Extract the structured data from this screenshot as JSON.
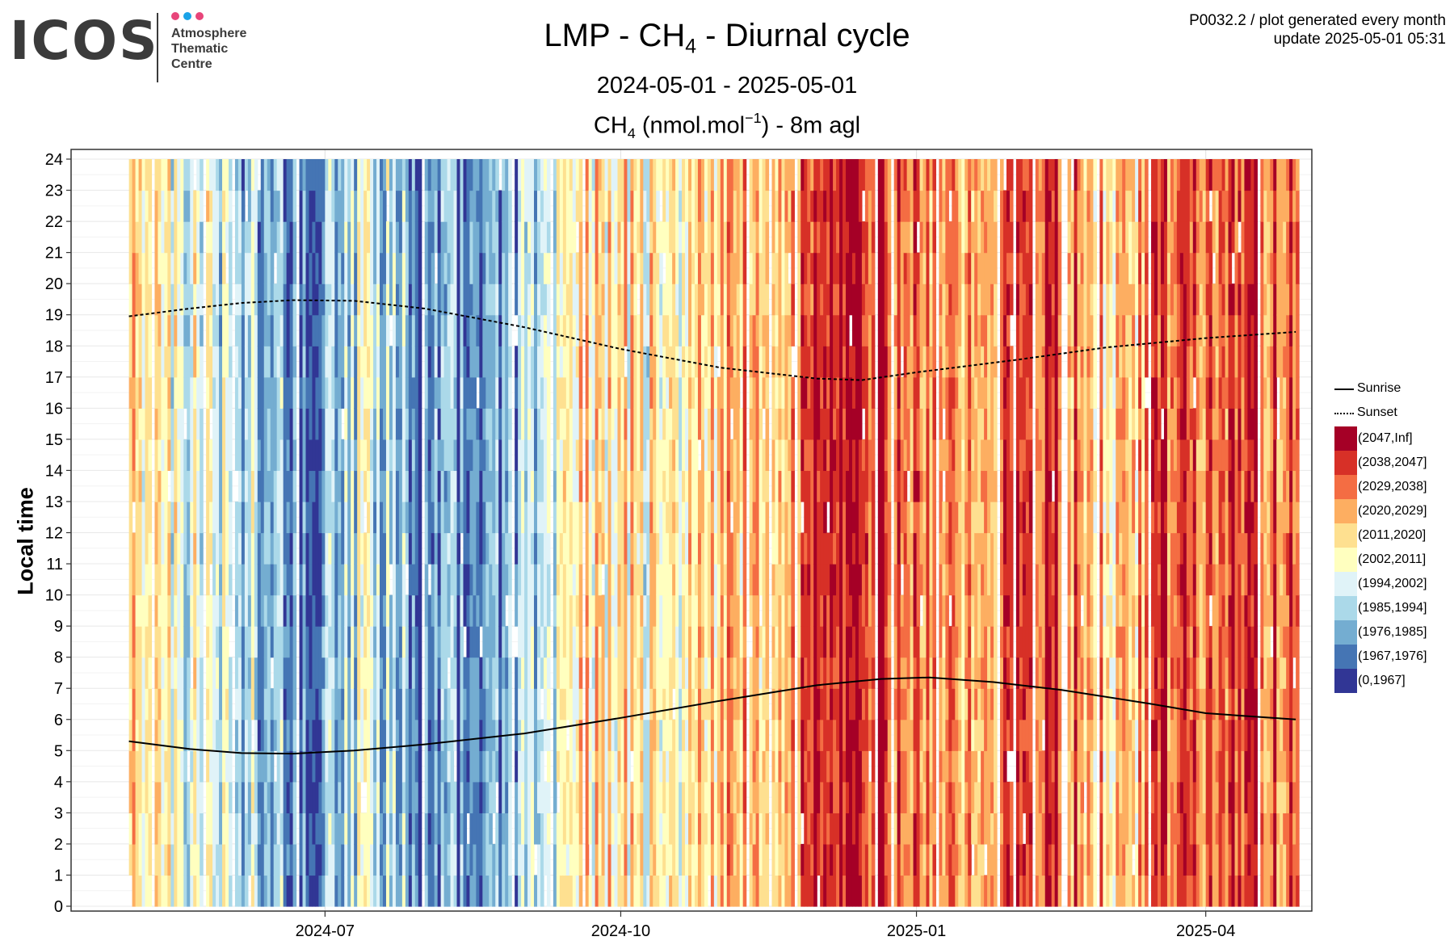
{
  "header": {
    "logo": {
      "wordmark": "ICOS",
      "lines": [
        "Atmosphere",
        "Thematic",
        "Centre"
      ],
      "dot_colors": [
        "#e8457a",
        "#1aa3e8",
        "#e8457a"
      ]
    },
    "title_prefix": "LMP - CH",
    "title_sub": "4",
    "title_suffix": " - Diurnal cycle",
    "period": "2024-05-01 - 2025-05-01",
    "var_prefix": "CH",
    "var_sub": "4",
    "var_mid": " (nmol.mol",
    "var_sup": "−1",
    "var_suffix": ") - 8m agl",
    "meta_line1": "P0032.2 / plot generated every month",
    "meta_line2": "update  2025-05-01 05:31"
  },
  "chart_data": {
    "type": "heatmap",
    "x_axis": {
      "label": "",
      "range": [
        "2024-04-13",
        "2025-05-04"
      ],
      "ticks": [
        "2024-07",
        "2024-10",
        "2025-01",
        "2025-04"
      ]
    },
    "y_axis": {
      "label": "Local time",
      "range": [
        0,
        24
      ],
      "ticks": [
        0,
        1,
        2,
        3,
        4,
        5,
        6,
        7,
        8,
        9,
        10,
        11,
        12,
        13,
        14,
        15,
        16,
        17,
        18,
        19,
        20,
        21,
        22,
        23,
        24
      ]
    },
    "grid": true,
    "legend_position": "right",
    "data_period": [
      "2024-05-01",
      "2025-04-29"
    ],
    "color_classes": [
      {
        "label": "(2047,Inf]",
        "color": "#a50026"
      },
      {
        "label": "(2038,2047]",
        "color": "#d73027"
      },
      {
        "label": "(2029,2038]",
        "color": "#f46d43"
      },
      {
        "label": "(2020,2029]",
        "color": "#fdae61"
      },
      {
        "label": "(2011,2020]",
        "color": "#fee090"
      },
      {
        "label": "(2002,2011]",
        "color": "#ffffbf"
      },
      {
        "label": "(1994,2002]",
        "color": "#e0f3f8"
      },
      {
        "label": "(1985,1994]",
        "color": "#abd9e9"
      },
      {
        "label": "(1976,1985]",
        "color": "#74add1"
      },
      {
        "label": "(1967,1976]",
        "color": "#4575b4"
      },
      {
        "label": "(0,1967]",
        "color": "#313695"
      }
    ],
    "daily_class_trend": [
      {
        "date": "2024-05-01",
        "class": "(2011,2020]"
      },
      {
        "date": "2024-05-20",
        "class": "(1994,2002]"
      },
      {
        "date": "2024-06-10",
        "class": "(1985,1994]"
      },
      {
        "date": "2024-06-25",
        "class": "(1967,1976]"
      },
      {
        "date": "2024-07-15",
        "class": "(1994,2002]"
      },
      {
        "date": "2024-07-30",
        "class": "(1967,1976]"
      },
      {
        "date": "2024-08-20",
        "class": "(1976,1985]"
      },
      {
        "date": "2024-09-05",
        "class": "(1985,1994]"
      },
      {
        "date": "2024-09-20",
        "class": "(2011,2020]"
      },
      {
        "date": "2024-10-10",
        "class": "(2002,2011]"
      },
      {
        "date": "2024-10-25",
        "class": "(2011,2020]"
      },
      {
        "date": "2024-11-15",
        "class": "(2020,2029]"
      },
      {
        "date": "2024-12-10",
        "class": "(2038,2047]"
      },
      {
        "date": "2024-12-28",
        "class": "(2029,2038]"
      },
      {
        "date": "2025-01-20",
        "class": "(2020,2029]"
      },
      {
        "date": "2025-02-10",
        "class": "(2038,2047]"
      },
      {
        "date": "2025-03-05",
        "class": "(2011,2020]"
      },
      {
        "date": "2025-03-25",
        "class": "(2038,2047]"
      },
      {
        "date": "2025-04-29",
        "class": "(2029,2038]"
      }
    ],
    "series": [
      {
        "name": "Sunrise",
        "style": "solid",
        "points": [
          [
            "2024-05-01",
            5.3
          ],
          [
            "2024-05-20",
            5.05
          ],
          [
            "2024-06-05",
            4.92
          ],
          [
            "2024-06-21",
            4.9
          ],
          [
            "2024-07-10",
            5.0
          ],
          [
            "2024-08-01",
            5.2
          ],
          [
            "2024-09-01",
            5.55
          ],
          [
            "2024-10-01",
            6.05
          ],
          [
            "2024-11-01",
            6.6
          ],
          [
            "2024-12-01",
            7.1
          ],
          [
            "2024-12-21",
            7.3
          ],
          [
            "2025-01-05",
            7.35
          ],
          [
            "2025-01-25",
            7.2
          ],
          [
            "2025-02-15",
            6.95
          ],
          [
            "2025-03-15",
            6.5
          ],
          [
            "2025-04-01",
            6.2
          ],
          [
            "2025-04-29",
            6.0
          ]
        ]
      },
      {
        "name": "Sunset",
        "style": "dotted",
        "points": [
          [
            "2024-05-01",
            18.95
          ],
          [
            "2024-05-20",
            19.2
          ],
          [
            "2024-06-05",
            19.38
          ],
          [
            "2024-06-21",
            19.47
          ],
          [
            "2024-07-10",
            19.45
          ],
          [
            "2024-08-01",
            19.2
          ],
          [
            "2024-09-01",
            18.6
          ],
          [
            "2024-10-01",
            17.9
          ],
          [
            "2024-11-01",
            17.3
          ],
          [
            "2024-12-01",
            16.95
          ],
          [
            "2024-12-15",
            16.9
          ],
          [
            "2025-01-01",
            17.15
          ],
          [
            "2025-02-01",
            17.55
          ],
          [
            "2025-03-01",
            17.95
          ],
          [
            "2025-04-01",
            18.25
          ],
          [
            "2025-04-29",
            18.45
          ]
        ]
      }
    ]
  }
}
